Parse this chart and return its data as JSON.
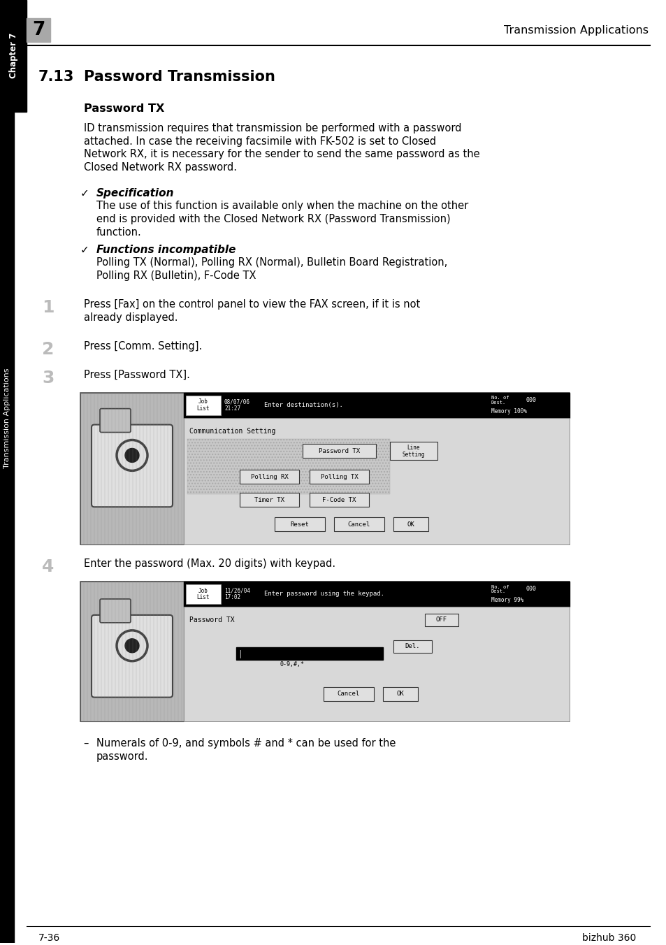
{
  "page_bg": "#ffffff",
  "header_number_bg": "#a8a8a8",
  "header_text": "Transmission Applications",
  "section_number": "7.13",
  "section_title": "Password Transmission",
  "subsection_title": "Password TX",
  "body_text1_lines": [
    "ID transmission requires that transmission be performed with a password",
    "attached. In case the receiving facsimile with FK-502 is set to Closed",
    "Network RX, it is necessary for the sender to send the same password as the",
    "Closed Network RX password."
  ],
  "spec_title": "Specification",
  "spec_body_lines": [
    "The use of this function is available only when the machine on the other",
    "end is provided with the Closed Network RX (Password Transmission)",
    "function."
  ],
  "func_title": "Functions incompatible",
  "func_body_lines": [
    "Polling TX (Normal), Polling RX (Normal), Bulletin Board Registration,",
    "Polling RX (Bulletin), F-Code TX"
  ],
  "step1_text_lines": [
    "Press [Fax] on the control panel to view the FAX screen, if it is not",
    "already displayed."
  ],
  "step2_text": "Press [Comm. Setting].",
  "step3_text": "Press [Password TX].",
  "step4_text": "Enter the password (Max. 20 digits) with keypad.",
  "bullet_note_lines": [
    "Numerals of 0-9, and symbols # and * can be used for the",
    "password."
  ],
  "footer_left": "7-36",
  "footer_right": "bizhub 360",
  "sidebar_text": "Transmission Applications",
  "sidebar_chapter": "Chapter 7"
}
